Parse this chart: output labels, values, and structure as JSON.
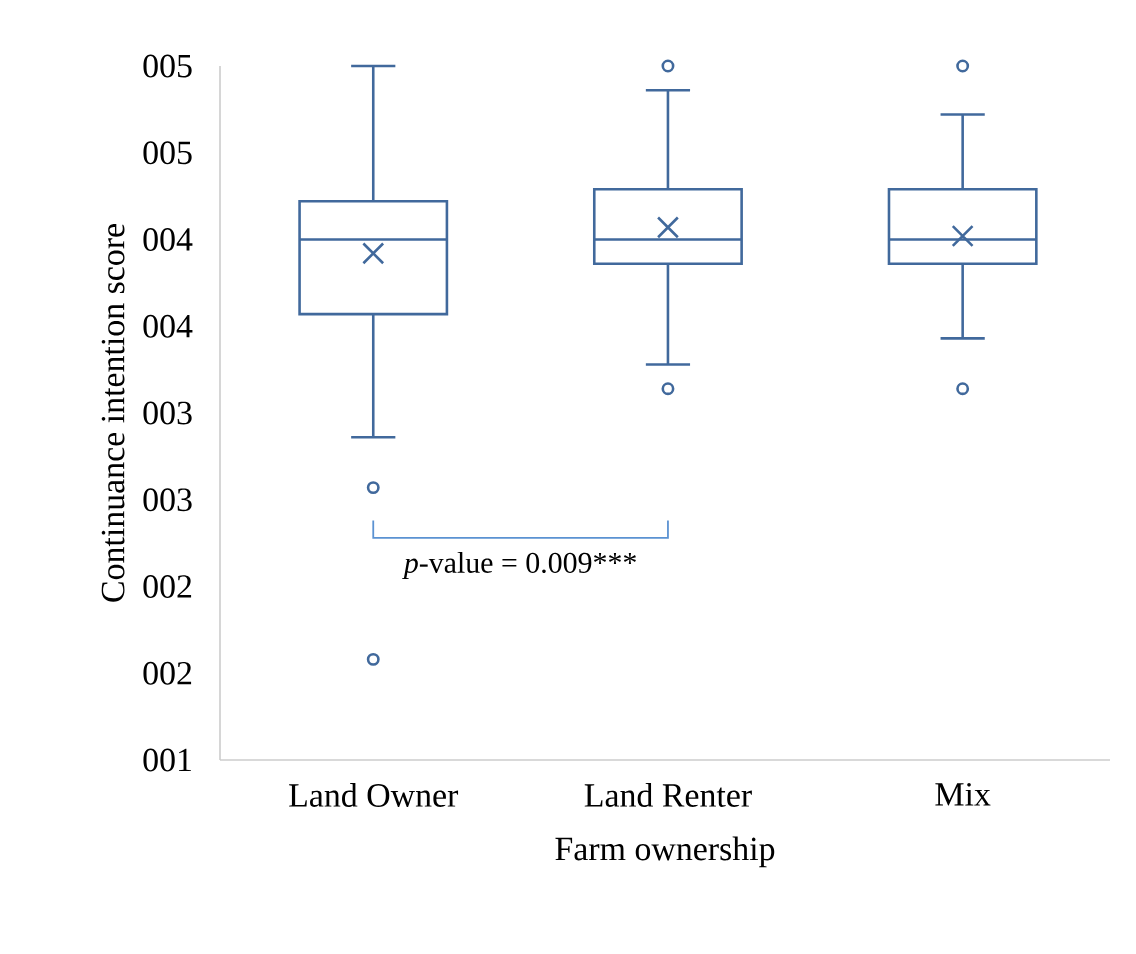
{
  "chart_data": {
    "type": "box",
    "categories": [
      "Land Owner",
      "Land Renter",
      "Mix"
    ],
    "xlabel": "Farm ownership",
    "ylabel": "Continuance intention score",
    "color": "#41699c",
    "grid": false,
    "ylim": [
      1,
      5
    ],
    "yticks": [
      {
        "value": 1,
        "label": "001"
      },
      {
        "value": 1.5,
        "label": "002"
      },
      {
        "value": 2,
        "label": "002"
      },
      {
        "value": 2.5,
        "label": "003"
      },
      {
        "value": 3,
        "label": "003"
      },
      {
        "value": 3.5,
        "label": "004"
      },
      {
        "value": 4,
        "label": "004"
      },
      {
        "value": 4.5,
        "label": "005"
      },
      {
        "value": 5,
        "label": "005"
      }
    ],
    "boxes": [
      {
        "low": 2.86,
        "q1": 3.57,
        "median": 4.0,
        "q3": 4.22,
        "high": 5.0,
        "mean": 3.92,
        "outliers": [
          2.57,
          1.58
        ]
      },
      {
        "low": 3.28,
        "q1": 3.86,
        "median": 4.0,
        "q3": 4.29,
        "high": 4.86,
        "mean": 4.07,
        "outliers": [
          5.0,
          3.14
        ]
      },
      {
        "low": 3.43,
        "q1": 3.86,
        "median": 4.0,
        "q3": 4.29,
        "high": 4.72,
        "mean": 4.02,
        "outliers": [
          5.0,
          3.14
        ]
      }
    ],
    "annotations": [
      "*p*-value = 0.009***"
    ]
  }
}
